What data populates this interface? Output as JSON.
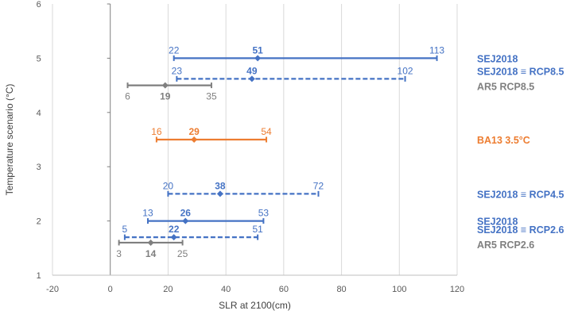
{
  "chart_data": {
    "type": "range-interval",
    "xlabel": "SLR at 2100(cm)",
    "ylabel": "Temperature scenario (°C)",
    "xlim": [
      -20,
      120
    ],
    "ylim": [
      1,
      6
    ],
    "xticks": [
      -20,
      0,
      20,
      40,
      60,
      80,
      100,
      120
    ],
    "yticks": [
      1,
      2,
      3,
      4,
      5,
      6
    ],
    "grid": "vertical-major",
    "colors": {
      "blue": "#4472c4",
      "gray": "#7f7f7f",
      "orange": "#ed7d31"
    },
    "series": [
      {
        "y": 5.0,
        "low": 22,
        "mid": 51,
        "high": 113,
        "color": "#4472c4",
        "style": "solid",
        "labels": [
          "22",
          "51",
          "113"
        ]
      },
      {
        "y": 4.62,
        "low": 23,
        "mid": 49,
        "high": 102,
        "color": "#4472c4",
        "style": "dashed",
        "labels": [
          "23",
          "49",
          "102"
        ]
      },
      {
        "y": 4.5,
        "low": 6,
        "mid": 19,
        "high": 35,
        "color": "#7f7f7f",
        "style": "solid",
        "labels": [
          "6",
          "19",
          "35"
        ]
      },
      {
        "y": 3.5,
        "low": 16,
        "mid": 29,
        "high": 54,
        "color": "#ed7d31",
        "style": "solid",
        "labels": [
          "16",
          "29",
          "54"
        ]
      },
      {
        "y": 2.5,
        "low": 20,
        "mid": 38,
        "high": 72,
        "color": "#4472c4",
        "style": "dashed",
        "labels": [
          "20",
          "38",
          "72"
        ]
      },
      {
        "y": 2.0,
        "low": 13,
        "mid": 26,
        "high": 53,
        "color": "#4472c4",
        "style": "solid",
        "labels": [
          "13",
          "26",
          "53"
        ]
      },
      {
        "y": 1.7,
        "low": 5,
        "mid": 22,
        "high": 51,
        "color": "#4472c4",
        "style": "dashed",
        "labels": [
          "5",
          "22",
          "51"
        ]
      },
      {
        "y": 1.6,
        "low": 3,
        "mid": 14,
        "high": 25,
        "color": "#7f7f7f",
        "style": "solid",
        "labels": [
          "3",
          "14",
          "25"
        ]
      }
    ],
    "legend": [
      {
        "text": "SEJ2018",
        "color": "#4472c4"
      },
      {
        "text": "SEJ2018 ≡ RCP8.5",
        "color": "#4472c4"
      },
      {
        "text": "AR5 RCP8.5",
        "color": "#7f7f7f"
      },
      {
        "text": "BA13 3.5°C",
        "color": "#ed7d31"
      },
      {
        "text": "SEJ2018 ≡ RCP4.5",
        "color": "#4472c4"
      },
      {
        "text": "SEJ2018",
        "color": "#4472c4"
      },
      {
        "text": "SEJ2018 ≡ RCP2.6",
        "color": "#4472c4"
      },
      {
        "text": "AR5 RCP2.6",
        "color": "#7f7f7f"
      }
    ]
  }
}
